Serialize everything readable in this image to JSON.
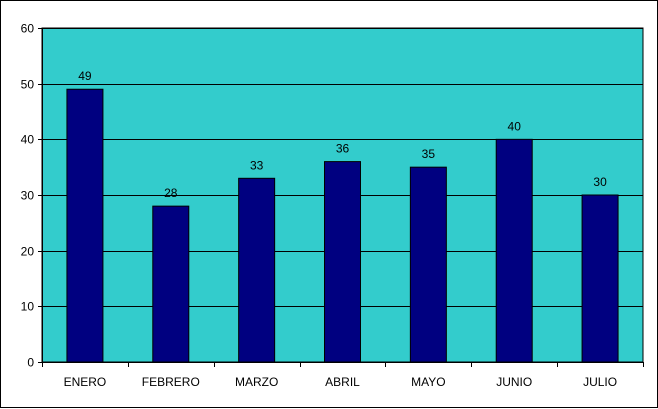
{
  "chart_data": {
    "type": "bar",
    "title": "",
    "xlabel": "",
    "ylabel": "",
    "categories": [
      "ENERO",
      "FEBRERO",
      "MARZO",
      "ABRIL",
      "MAYO",
      "JUNIO",
      "JULIO"
    ],
    "values": [
      49,
      28,
      33,
      36,
      35,
      40,
      30
    ],
    "ylim": [
      0,
      60
    ],
    "yticks": [
      0,
      10,
      20,
      30,
      40,
      50,
      60
    ],
    "grid": true,
    "legend": "none",
    "data_labels": true,
    "colors": {
      "plot_background": "#33CCCC",
      "bar_fill": "#000080",
      "gridline": "#000000",
      "frame_border": "#000000"
    }
  }
}
